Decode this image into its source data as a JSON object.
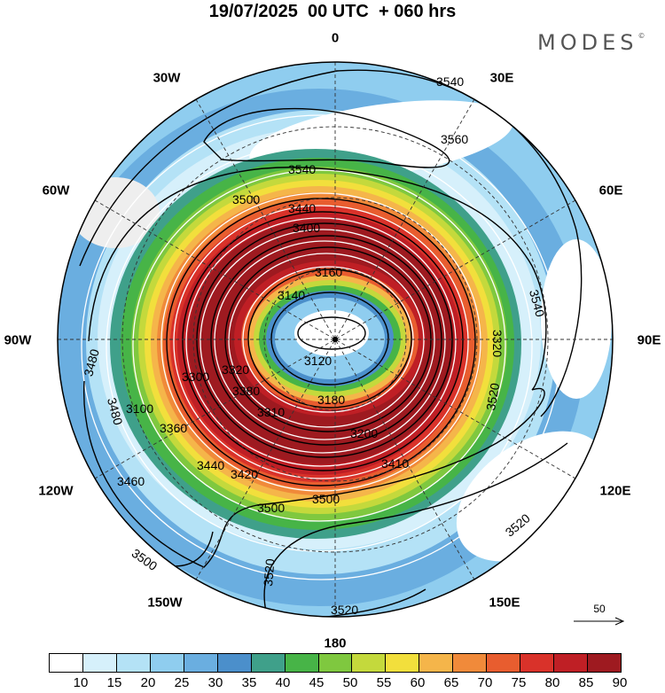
{
  "header": {
    "title": "19/07/2025  00 UTC  + 060 hrs",
    "brand": "MODES",
    "brand_mark": "©"
  },
  "lon_labels": {
    "n0": "0",
    "w30": "30W",
    "e30": "30E",
    "w60": "60W",
    "e60": "60E",
    "w90": "90W",
    "e90": "90E",
    "w120": "120W",
    "e120": "120E",
    "w150": "150W",
    "e150": "150E",
    "s180": "180"
  },
  "contour_labels": [
    "3540",
    "3560",
    "3540",
    "3500",
    "3440",
    "3160",
    "3140",
    "3120",
    "3200",
    "3180",
    "3320",
    "3360",
    "3440",
    "3460",
    "3500",
    "3500",
    "3520",
    "3540",
    "3520",
    "3480",
    "3480",
    "3500",
    "3520",
    "3520",
    "3400",
    "3380",
    "3310",
    "3410",
    "3420",
    "3300",
    "3100",
    "3320"
  ],
  "reference_vector": {
    "value": "50"
  },
  "colorbar": {
    "labels": [
      "10",
      "15",
      "20",
      "25",
      "30",
      "35",
      "40",
      "45",
      "50",
      "55",
      "60",
      "65",
      "70",
      "75",
      "80",
      "85",
      "90"
    ],
    "colors": [
      "#ffffff",
      "#d6f0fb",
      "#b4e2f6",
      "#8fcdef",
      "#6aaee0",
      "#4b8fcb",
      "#3fa08a",
      "#47b447",
      "#7fc83f",
      "#c4d93c",
      "#f2df3c",
      "#f5b54a",
      "#f08a3a",
      "#e85d2f",
      "#d9322a",
      "#bf1f25",
      "#9e1a20"
    ]
  }
}
